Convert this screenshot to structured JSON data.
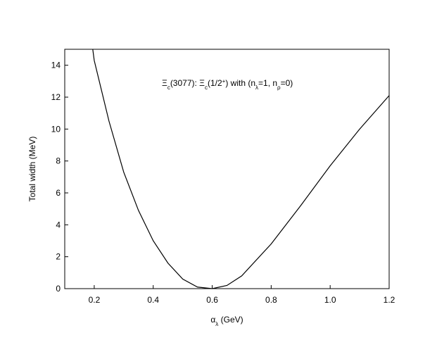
{
  "chart_data": {
    "type": "line",
    "xlabel": [
      {
        "text": "α"
      },
      {
        "text": "λ",
        "baseline": "sub"
      },
      {
        "text": " (GeV)"
      }
    ],
    "ylabel": "Total width (MeV)",
    "annotation": [
      {
        "text": "Ξ"
      },
      {
        "text": "c",
        "baseline": "sub"
      },
      {
        "text": "(3077): Ξ"
      },
      {
        "text": "c",
        "baseline": "sub"
      },
      {
        "text": "(1/2"
      },
      {
        "text": "+",
        "baseline": "super"
      },
      {
        "text": ") with (n"
      },
      {
        "text": "λ",
        "baseline": "sub"
      },
      {
        "text": "=1, n"
      },
      {
        "text": "ρ",
        "baseline": "sub"
      },
      {
        "text": "=0)"
      }
    ],
    "x": [
      0.195,
      0.2,
      0.25,
      0.3,
      0.35,
      0.4,
      0.45,
      0.5,
      0.55,
      0.6,
      0.65,
      0.7,
      0.8,
      0.9,
      1.0,
      1.1,
      1.2
    ],
    "series": [
      {
        "color": "#000000",
        "values": [
          15,
          14.3,
          10.5,
          7.3,
          4.9,
          3.0,
          1.6,
          0.6,
          0.1,
          0.0,
          0.2,
          0.8,
          2.8,
          5.2,
          7.7,
          10.0,
          12.1
        ]
      }
    ],
    "xlim": [
      0.1,
      1.2
    ],
    "ylim": [
      0,
      15
    ],
    "xticks": [
      0.2,
      0.4,
      0.6,
      0.8,
      {
        "value": 1.0,
        "label": "1.0"
      },
      1.2
    ],
    "yticks": [
      0,
      2,
      4,
      6,
      8,
      10,
      12,
      14
    ]
  }
}
